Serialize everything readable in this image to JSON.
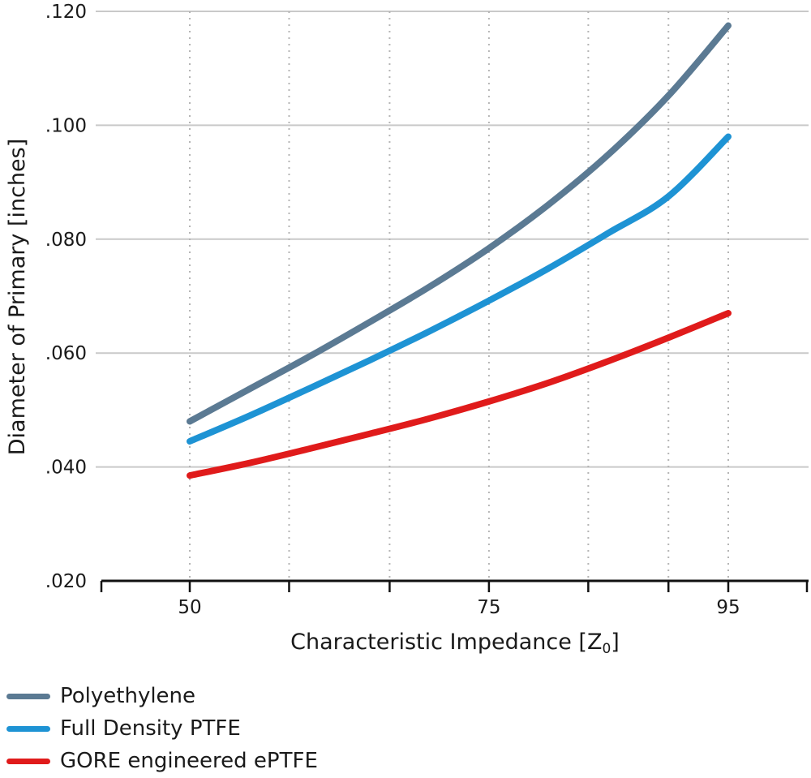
{
  "chart_data": {
    "type": "line",
    "xlabel": "Characteristic Impedance [Z",
    "xlabel_subscript": "0",
    "xlabel_suffix": "]",
    "ylabel": "Diameter of Primary [inches]",
    "xlim": [
      42,
      102
    ],
    "ylim": [
      0.02,
      0.12
    ],
    "x_tick_labels": [
      {
        "x": 50,
        "label": "50"
      },
      {
        "x": 75,
        "label": "75"
      },
      {
        "x": 95,
        "label": "95"
      }
    ],
    "x_minor_ticks": [
      58.3,
      66.7,
      83.3,
      90
    ],
    "y_ticks": [
      {
        "y": 0.02,
        "label": ".020"
      },
      {
        "y": 0.04,
        "label": ".040"
      },
      {
        "y": 0.06,
        "label": ".060"
      },
      {
        "y": 0.08,
        "label": ".080"
      },
      {
        "y": 0.1,
        "label": ".100"
      },
      {
        "y": 0.12,
        "label": ".120"
      }
    ],
    "grid": true,
    "legend_position": "bottom-left",
    "series": [
      {
        "name": "Polyethylene",
        "color": "#5b7a93",
        "x": [
          50,
          55,
          60,
          65,
          70,
          75,
          80,
          85,
          90,
          95
        ],
        "y": [
          0.048,
          0.0537,
          0.0594,
          0.0654,
          0.0716,
          0.0784,
          0.0861,
          0.0949,
          0.1052,
          0.1175
        ]
      },
      {
        "name": "Full Density PTFE",
        "color": "#1e93d4",
        "x": [
          50,
          55,
          60,
          65,
          70,
          75,
          80,
          85,
          90,
          95
        ],
        "y": [
          0.0445,
          0.049,
          0.0538,
          0.0587,
          0.0638,
          0.0692,
          0.0749,
          0.0811,
          0.0875,
          0.098
        ]
      },
      {
        "name": "GORE engineered ePTFE",
        "color": "#e01b1b",
        "x": [
          50,
          55,
          60,
          65,
          70,
          75,
          80,
          85,
          90,
          95
        ],
        "y": [
          0.0385,
          0.0407,
          0.0432,
          0.0458,
          0.0485,
          0.0515,
          0.0548,
          0.0586,
          0.0627,
          0.067
        ]
      }
    ]
  }
}
